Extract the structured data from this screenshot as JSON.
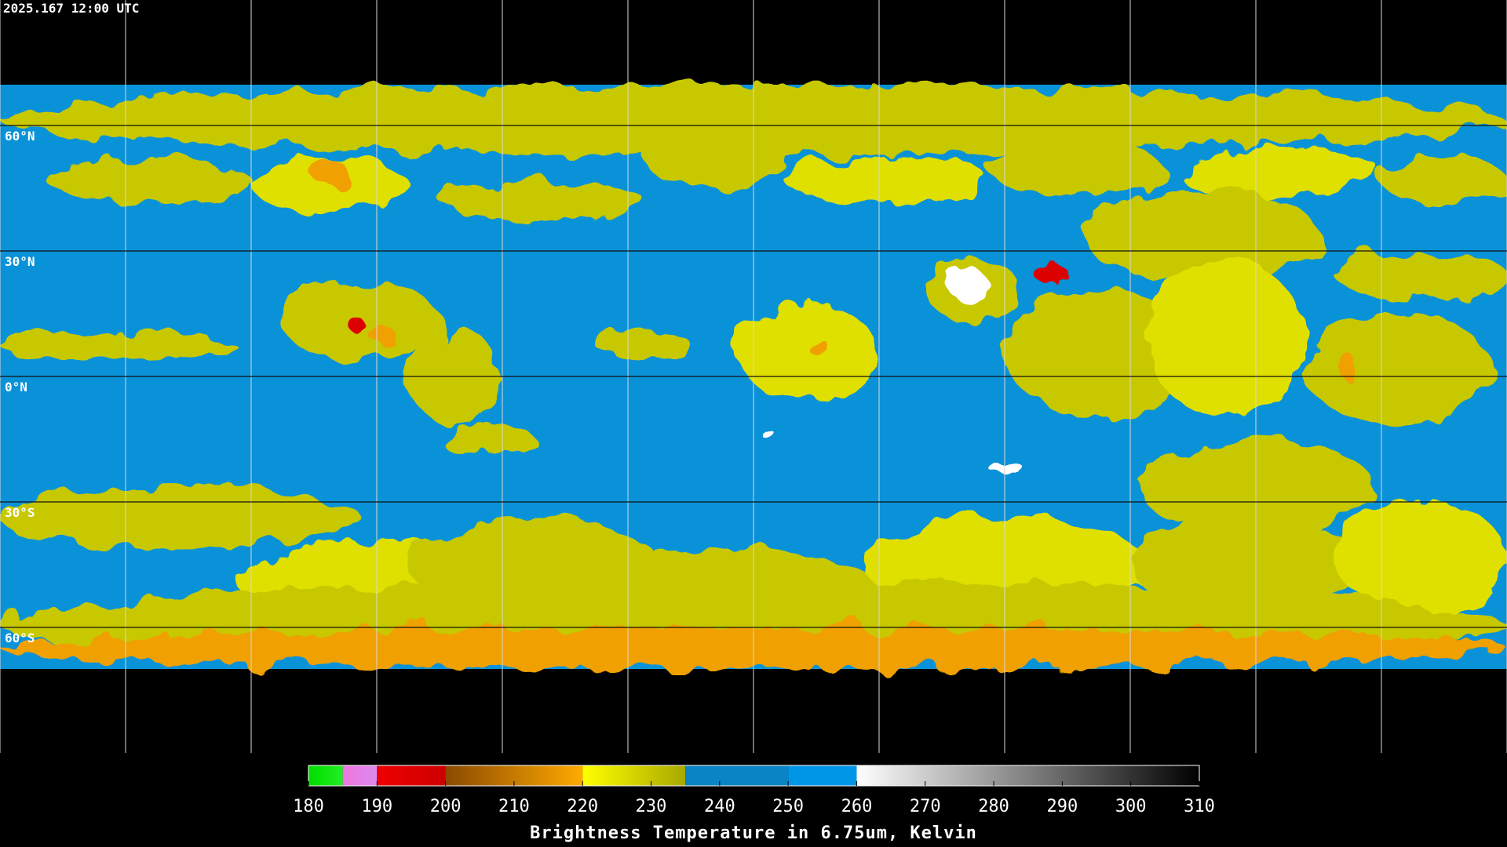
{
  "title": "2025.167 12:00 UTC",
  "latitude_lines": [
    {
      "value": 60,
      "label": "60°N"
    },
    {
      "value": 30,
      "label": "30°N"
    },
    {
      "value": 0,
      "label": "0°N"
    },
    {
      "value": -30,
      "label": "30°S"
    },
    {
      "value": -60,
      "label": "60°S"
    }
  ],
  "colorbar": {
    "label": "Brightness Temperature in 6.75um, Kelvin",
    "range": [
      180,
      310
    ],
    "ticks": [
      180,
      190,
      200,
      210,
      220,
      230,
      240,
      250,
      260,
      270,
      280,
      290,
      300,
      310
    ],
    "segments": [
      {
        "from": 180,
        "to": 185,
        "colors": [
          "#00dd00",
          "#22ee22"
        ]
      },
      {
        "from": 185,
        "to": 190,
        "colors": [
          "#ee77dd",
          "#dd88ee"
        ]
      },
      {
        "from": 190,
        "to": 200,
        "colors": [
          "#ee0000",
          "#cc0000"
        ]
      },
      {
        "from": 200,
        "to": 220,
        "colors": [
          "#8a4a00",
          "#ffaa00"
        ]
      },
      {
        "from": 220,
        "to": 235,
        "colors": [
          "#ffff00",
          "#a8a800"
        ]
      },
      {
        "from": 235,
        "to": 250,
        "colors": [
          "#0a84c4",
          "#0a84c4"
        ]
      },
      {
        "from": 250,
        "to": 260,
        "colors": [
          "#0096e8",
          "#0096e8"
        ]
      },
      {
        "from": 260,
        "to": 310,
        "colors": [
          "#ffffff",
          "#000000"
        ]
      }
    ]
  }
}
